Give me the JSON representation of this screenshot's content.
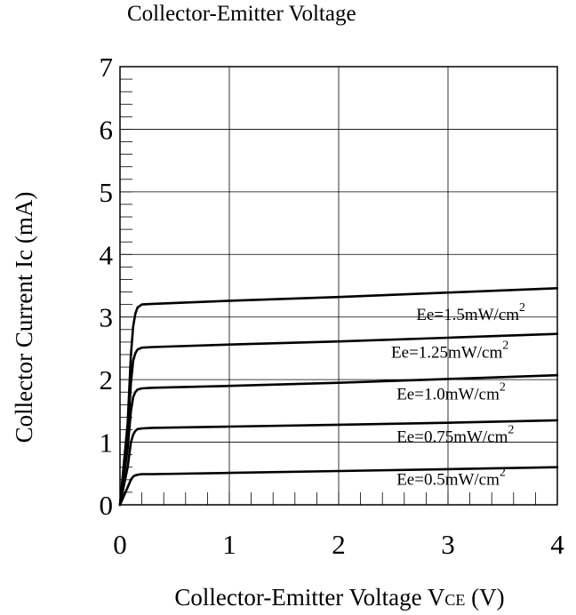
{
  "chart_data": {
    "type": "line",
    "title": "Collector-Emitter Voltage",
    "xlabel_main": "Collector-Emitter Voltage V",
    "xlabel_sub": "CE",
    "xlabel_unit": " (V)",
    "ylabel": "Collector Current Ic (mA)",
    "xlim": [
      0,
      4
    ],
    "ylim": [
      0,
      7
    ],
    "xticks": [
      0,
      1,
      2,
      3,
      4
    ],
    "yticks": [
      0,
      1,
      2,
      3,
      4,
      5,
      6,
      7
    ],
    "grid": true,
    "series": [
      {
        "name_main": "Ee=1.5mW/cm",
        "name_sup": "2",
        "x": [
          0,
          0.07,
          0.1,
          0.12,
          0.14,
          0.16,
          0.2,
          0.3,
          1.0,
          2.0,
          3.0,
          4.0
        ],
        "y": [
          0,
          1.3,
          2.4,
          2.85,
          3.05,
          3.15,
          3.2,
          3.21,
          3.26,
          3.32,
          3.39,
          3.46
        ]
      },
      {
        "name_main": "Ee=1.25mW/cm",
        "name_sup": "2",
        "x": [
          0,
          0.07,
          0.1,
          0.12,
          0.14,
          0.16,
          0.2,
          0.3,
          1.0,
          2.0,
          3.0,
          4.0
        ],
        "y": [
          0,
          1.1,
          1.95,
          2.3,
          2.42,
          2.48,
          2.51,
          2.52,
          2.56,
          2.61,
          2.67,
          2.73
        ]
      },
      {
        "name_main": "Ee=1.0mW/cm",
        "name_sup": "2",
        "x": [
          0,
          0.07,
          0.1,
          0.12,
          0.14,
          0.16,
          0.2,
          0.3,
          1.0,
          2.0,
          3.0,
          4.0
        ],
        "y": [
          0,
          0.9,
          1.5,
          1.72,
          1.8,
          1.84,
          1.86,
          1.87,
          1.9,
          1.95,
          2.01,
          2.07
        ]
      },
      {
        "name_main": "Ee=0.75mW/cm",
        "name_sup": "2",
        "x": [
          0,
          0.07,
          0.1,
          0.12,
          0.14,
          0.16,
          0.2,
          0.3,
          1.0,
          2.0,
          3.0,
          4.0
        ],
        "y": [
          0,
          0.6,
          1.0,
          1.12,
          1.18,
          1.21,
          1.22,
          1.23,
          1.25,
          1.28,
          1.31,
          1.35
        ]
      },
      {
        "name_main": "Ee=0.5mW/cm",
        "name_sup": "2",
        "x": [
          0,
          0.07,
          0.1,
          0.12,
          0.14,
          0.16,
          0.2,
          0.3,
          1.0,
          2.0,
          3.0,
          4.0
        ],
        "y": [
          0,
          0.28,
          0.4,
          0.45,
          0.47,
          0.48,
          0.49,
          0.49,
          0.51,
          0.54,
          0.57,
          0.6
        ]
      }
    ]
  }
}
